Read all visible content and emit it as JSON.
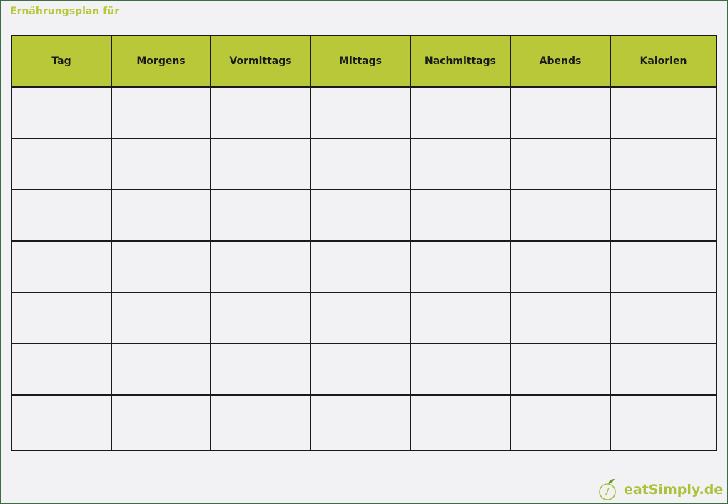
{
  "title": "Ernährungsplan für",
  "columns": [
    "Tag",
    "Morgens",
    "Vormittags",
    "Mittags",
    "Nachmittags",
    "Abends",
    "Kalorien"
  ],
  "logo": {
    "text": "eatSimply.de",
    "icon": "apple-stopwatch-icon"
  },
  "colors": {
    "header_fill": "#b8c838",
    "accent": "#b5c93a",
    "frame": "#3c6e45"
  }
}
